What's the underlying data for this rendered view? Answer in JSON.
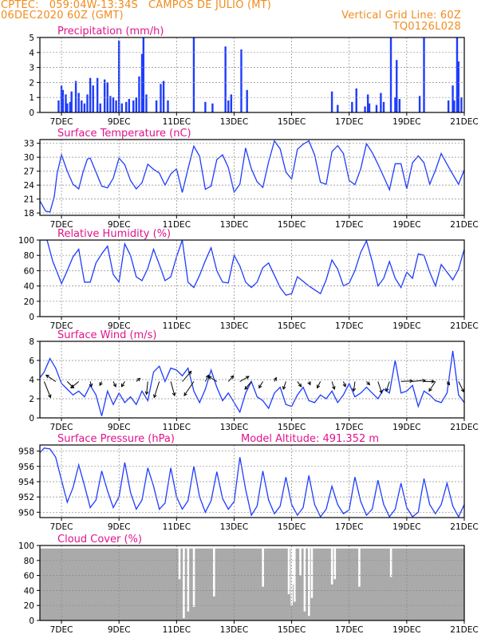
{
  "header": {
    "line1_left": "CPTEC:   059:04W-13:34S   CAMPOS DE JULIO (MT)",
    "line2_left": "06DEC2020 60Z (GMT)",
    "line2_right": "Vertical Grid Line: 60Z",
    "line3_right": "TQ0126L028"
  },
  "colors": {
    "header": "#f08c1e",
    "title": "#e0148c",
    "series": "#1e3cff",
    "cloud": "#aaaaaa"
  },
  "x_axis": {
    "labels": [
      "7DEC",
      "9DEC",
      "11DEC",
      "13DEC",
      "15DEC",
      "17DEC",
      "19DEC",
      "21DEC"
    ],
    "label_days": [
      7,
      9,
      11,
      13,
      15,
      17,
      19,
      21
    ],
    "range_days": [
      6.25,
      21.0
    ]
  },
  "chart_data": [
    {
      "type": "bar",
      "title": "Precipitation (mm/h)",
      "ylim": [
        0,
        5
      ],
      "yticks": [
        0,
        1,
        2,
        3,
        4,
        5
      ],
      "x": [
        6.9,
        7.0,
        7.05,
        7.15,
        7.2,
        7.3,
        7.35,
        7.5,
        7.6,
        7.7,
        7.8,
        7.9,
        8.0,
        8.1,
        8.25,
        8.35,
        8.5,
        8.6,
        8.7,
        8.8,
        8.9,
        9.0,
        9.1,
        9.25,
        9.35,
        9.5,
        9.6,
        9.7,
        9.8,
        9.85,
        9.95,
        10.3,
        10.45,
        10.55,
        10.7,
        11.6,
        12.0,
        12.25,
        12.7,
        12.8,
        12.9,
        13.25,
        13.45,
        16.4,
        16.6,
        17.1,
        17.25,
        17.55,
        17.65,
        17.7,
        17.95,
        18.1,
        18.2,
        18.45,
        18.6,
        18.65,
        18.75,
        19.45,
        19.6,
        20.45,
        20.6,
        20.65,
        20.75,
        20.8,
        20.9
      ],
      "values": [
        0.8,
        1.8,
        1.5,
        1.2,
        0.6,
        0.7,
        1.4,
        2.1,
        1.3,
        0.8,
        0.6,
        1.2,
        2.3,
        1.8,
        2.3,
        0.6,
        2.2,
        2.0,
        1.1,
        1.0,
        0.8,
        4.8,
        0.6,
        0.7,
        0.9,
        0.8,
        1.0,
        2.4,
        3.9,
        5.0,
        1.2,
        0.8,
        1.9,
        2.1,
        0.8,
        5.0,
        0.7,
        0.6,
        4.4,
        0.8,
        1.2,
        4.2,
        1.5,
        1.4,
        0.5,
        0.7,
        1.6,
        0.4,
        1.2,
        0.6,
        0.5,
        1.3,
        0.7,
        5.0,
        1.0,
        3.5,
        0.9,
        1.1,
        5.0,
        0.8,
        1.8,
        0.8,
        5.0,
        3.4,
        1.0
      ]
    },
    {
      "type": "line",
      "title": "Surface Temperature (nC)",
      "ylim": [
        17.5,
        33.8
      ],
      "yticks": [
        18,
        21,
        24,
        27,
        30,
        33
      ],
      "x": [
        6.25,
        6.45,
        6.6,
        6.75,
        6.85,
        7.0,
        7.2,
        7.4,
        7.6,
        7.75,
        7.9,
        8.0,
        8.2,
        8.4,
        8.6,
        8.8,
        9.0,
        9.2,
        9.4,
        9.6,
        9.8,
        10.0,
        10.2,
        10.4,
        10.6,
        10.8,
        11.0,
        11.2,
        11.4,
        11.6,
        11.8,
        12.0,
        12.2,
        12.4,
        12.6,
        12.8,
        13.0,
        13.2,
        13.4,
        13.6,
        13.8,
        14.0,
        14.2,
        14.4,
        14.6,
        14.8,
        15.0,
        15.2,
        15.4,
        15.6,
        15.8,
        16.0,
        16.2,
        16.4,
        16.6,
        16.8,
        17.0,
        17.2,
        17.4,
        17.6,
        17.8,
        18.0,
        18.2,
        18.4,
        18.6,
        18.8,
        19.0,
        19.2,
        19.4,
        19.6,
        19.8,
        20.0,
        20.2,
        20.4,
        20.6,
        20.8,
        21.0
      ],
      "values": [
        20.6,
        18.4,
        18.2,
        21.5,
        26.5,
        30.5,
        27.0,
        24.2,
        23.2,
        26.8,
        29.6,
        29.8,
        26.8,
        23.8,
        23.4,
        25.5,
        29.8,
        28.4,
        25.0,
        23.2,
        24.5,
        28.5,
        27.4,
        26.6,
        24.0,
        26.4,
        27.5,
        22.4,
        27.5,
        32.4,
        30.2,
        23.1,
        23.8,
        29.5,
        30.5,
        27.8,
        22.5,
        24.2,
        32.0,
        27.5,
        24.7,
        23.5,
        29.0,
        33.5,
        31.8,
        26.8,
        25.3,
        31.7,
        32.8,
        33.5,
        30.5,
        24.6,
        24.2,
        31.2,
        32.5,
        30.8,
        25.0,
        24.1,
        27.5,
        32.9,
        31.0,
        28.5,
        25.8,
        23.0,
        28.6,
        28.6,
        23.2,
        28.8,
        30.3,
        28.8,
        24.2,
        27.2,
        30.8,
        28.5,
        26.3,
        24.2,
        27.3
      ]
    },
    {
      "type": "line",
      "title": "Relative Humidity (%)",
      "ylim": [
        0,
        100
      ],
      "yticks": [
        0,
        20,
        40,
        60,
        80,
        100
      ],
      "x": [
        6.25,
        6.5,
        6.7,
        6.85,
        7.0,
        7.2,
        7.4,
        7.6,
        7.8,
        8.0,
        8.2,
        8.4,
        8.6,
        8.8,
        9.0,
        9.2,
        9.4,
        9.6,
        9.8,
        10.0,
        10.2,
        10.4,
        10.6,
        10.8,
        11.0,
        11.2,
        11.4,
        11.6,
        11.8,
        12.0,
        12.2,
        12.4,
        12.6,
        12.8,
        13.0,
        13.2,
        13.4,
        13.6,
        13.8,
        14.0,
        14.2,
        14.4,
        14.6,
        14.8,
        15.0,
        15.2,
        15.4,
        15.6,
        15.8,
        16.0,
        16.2,
        16.4,
        16.6,
        16.8,
        17.0,
        17.2,
        17.4,
        17.6,
        17.8,
        18.0,
        18.2,
        18.4,
        18.6,
        18.8,
        19.0,
        19.2,
        19.4,
        19.6,
        19.8,
        20.0,
        20.2,
        20.4,
        20.6,
        20.8,
        21.0
      ],
      "values": [
        100,
        100,
        72,
        58,
        43,
        60,
        78,
        88,
        45,
        45,
        70,
        82,
        92,
        55,
        45,
        95,
        80,
        52,
        47,
        63,
        88,
        68,
        47,
        52,
        78,
        100,
        45,
        38,
        54,
        73,
        90,
        60,
        45,
        44,
        80,
        66,
        45,
        38,
        45,
        64,
        70,
        54,
        38,
        28,
        30,
        52,
        46,
        40,
        35,
        30,
        48,
        74,
        62,
        40,
        44,
        60,
        84,
        99,
        72,
        40,
        50,
        72,
        50,
        38,
        58,
        50,
        82,
        80,
        58,
        40,
        68,
        58,
        48,
        62,
        88
      ]
    },
    {
      "type": "line",
      "title": "Surface Wind (m/s)",
      "ylim": [
        0,
        8
      ],
      "yticks": [
        0,
        2,
        4,
        6,
        8
      ],
      "x": [
        6.25,
        6.4,
        6.6,
        6.8,
        7.0,
        7.2,
        7.4,
        7.6,
        7.8,
        8.0,
        8.2,
        8.4,
        8.6,
        8.8,
        9.0,
        9.2,
        9.4,
        9.6,
        9.8,
        10.0,
        10.2,
        10.4,
        10.6,
        10.8,
        11.0,
        11.2,
        11.4,
        11.6,
        11.8,
        12.0,
        12.2,
        12.4,
        12.6,
        12.8,
        13.0,
        13.2,
        13.4,
        13.6,
        13.8,
        14.0,
        14.2,
        14.4,
        14.6,
        14.8,
        15.0,
        15.2,
        15.4,
        15.6,
        15.8,
        16.0,
        16.2,
        16.4,
        16.6,
        16.8,
        17.0,
        17.2,
        17.4,
        17.6,
        17.8,
        18.0,
        18.2,
        18.4,
        18.6,
        18.8,
        19.0,
        19.2,
        19.4,
        19.6,
        19.8,
        20.0,
        20.2,
        20.4,
        20.6,
        20.8,
        21.0
      ],
      "values": [
        4.2,
        4.8,
        6.2,
        5.2,
        3.6,
        3.0,
        2.4,
        2.8,
        2.2,
        3.4,
        2.4,
        0.2,
        2.8,
        1.4,
        2.6,
        1.6,
        2.2,
        1.4,
        2.8,
        1.8,
        4.8,
        5.4,
        3.8,
        5.2,
        5.0,
        4.4,
        5.2,
        2.8,
        1.6,
        3.0,
        5.0,
        3.2,
        1.8,
        2.6,
        1.6,
        0.6,
        2.6,
        3.8,
        2.2,
        1.8,
        1.0,
        2.6,
        3.2,
        1.4,
        1.2,
        2.4,
        3.2,
        1.8,
        1.6,
        2.4,
        2.0,
        2.8,
        1.6,
        2.4,
        3.6,
        2.2,
        2.6,
        3.2,
        2.6,
        2.0,
        3.0,
        2.6,
        6.0,
        2.6,
        2.8,
        3.4,
        1.2,
        2.8,
        2.4,
        1.8,
        1.6,
        2.6,
        7.0,
        2.4,
        1.6
      ],
      "arrows": {
        "x": [
          6.4,
          6.8,
          7.2,
          7.6,
          8.0,
          8.4,
          8.8,
          9.2,
          9.6,
          10.0,
          10.4,
          10.8,
          11.2,
          11.6,
          12.0,
          12.4,
          12.8,
          13.2,
          13.6,
          14.0,
          14.4,
          14.8,
          15.2,
          15.6,
          16.0,
          16.4,
          16.8,
          17.2,
          17.6,
          18.0,
          18.4,
          18.8,
          19.2,
          19.6,
          20.0,
          20.4,
          20.8
        ],
        "u": [
          1.0,
          -1.5,
          1.0,
          -1.2,
          0.2,
          -0.3,
          0.4,
          -0.5,
          0.6,
          -0.2,
          -0.8,
          0.6,
          1.4,
          -1.5,
          0.5,
          -1.3,
          0.8,
          1.4,
          -1.0,
          -0.6,
          0.3,
          -0.4,
          0.6,
          0.2,
          -0.5,
          0.4,
          0.3,
          -0.2,
          0.5,
          0.6,
          -0.5,
          1.8,
          2.0,
          1.6,
          -1.0,
          0.4,
          0.8
        ],
        "v": [
          -2.5,
          1.0,
          -1.0,
          -1.0,
          -0.8,
          -0.6,
          -0.8,
          -0.8,
          0.5,
          -2.0,
          -2.5,
          -2.2,
          1.6,
          -2.2,
          1.0,
          0.8,
          0.9,
          0.8,
          -1.2,
          -1.0,
          0.6,
          -1.2,
          -0.8,
          -0.5,
          -1.0,
          -1.2,
          -0.8,
          -1.5,
          -0.5,
          -1.8,
          -1.5,
          0.1,
          0.2,
          0.0,
          -1.5,
          -0.5,
          -1.6
        ]
      }
    },
    {
      "type": "line",
      "title": "Surface Pressure (hPa)",
      "subtitle": "Model Altitude: 491.352 m",
      "ylim": [
        949.3,
        958.8
      ],
      "yticks": [
        950,
        952,
        954,
        956,
        958
      ],
      "x": [
        6.25,
        6.4,
        6.6,
        6.8,
        7.0,
        7.2,
        7.4,
        7.6,
        7.8,
        8.0,
        8.2,
        8.4,
        8.6,
        8.8,
        9.0,
        9.2,
        9.4,
        9.6,
        9.8,
        10.0,
        10.2,
        10.4,
        10.6,
        10.8,
        11.0,
        11.2,
        11.4,
        11.6,
        11.8,
        12.0,
        12.2,
        12.4,
        12.6,
        12.8,
        13.0,
        13.2,
        13.4,
        13.6,
        13.8,
        14.0,
        14.2,
        14.4,
        14.6,
        14.8,
        15.0,
        15.2,
        15.4,
        15.6,
        15.8,
        16.0,
        16.2,
        16.4,
        16.6,
        16.8,
        17.0,
        17.2,
        17.4,
        17.6,
        17.8,
        18.0,
        18.2,
        18.4,
        18.6,
        18.8,
        19.0,
        19.2,
        19.4,
        19.6,
        19.8,
        20.0,
        20.2,
        20.4,
        20.6,
        20.8,
        21.0
      ],
      "values": [
        957.8,
        958.4,
        958.3,
        957.2,
        954.2,
        951.3,
        953.2,
        956.2,
        953.5,
        950.6,
        951.6,
        955.4,
        952.8,
        950.6,
        952.0,
        956.5,
        952.6,
        950.4,
        951.6,
        955.8,
        953.4,
        950.4,
        951.2,
        955.8,
        952.0,
        950.4,
        951.5,
        956.0,
        952.0,
        950.0,
        951.5,
        955.3,
        951.8,
        950.4,
        951.4,
        957.2,
        953.0,
        949.6,
        950.8,
        955.4,
        951.6,
        949.8,
        950.8,
        954.6,
        951.0,
        949.6,
        950.6,
        954.8,
        951.0,
        949.4,
        950.4,
        953.4,
        951.0,
        949.8,
        950.3,
        954.6,
        951.4,
        949.6,
        950.4,
        954.2,
        951.0,
        949.4,
        950.4,
        953.8,
        950.6,
        949.4,
        950.0,
        954.4,
        951.0,
        949.8,
        951.0,
        953.8,
        950.8,
        949.4,
        951.0
      ]
    },
    {
      "type": "bar",
      "title": "Cloud Cover (%)",
      "ylim": [
        0,
        100
      ],
      "yticks": [
        0,
        20,
        40,
        60,
        80,
        100
      ],
      "x": [
        11.1,
        11.25,
        11.4,
        11.6,
        12.3,
        14.0,
        14.9,
        15.0,
        15.05,
        15.1,
        15.3,
        15.45,
        15.6,
        15.7,
        16.4,
        16.5,
        17.35,
        18.45
      ],
      "values": [
        55,
        3,
        12,
        18,
        32,
        45,
        35,
        20,
        48,
        25,
        60,
        12,
        6,
        30,
        48,
        55,
        45,
        58
      ],
      "baseline": 96
    }
  ]
}
